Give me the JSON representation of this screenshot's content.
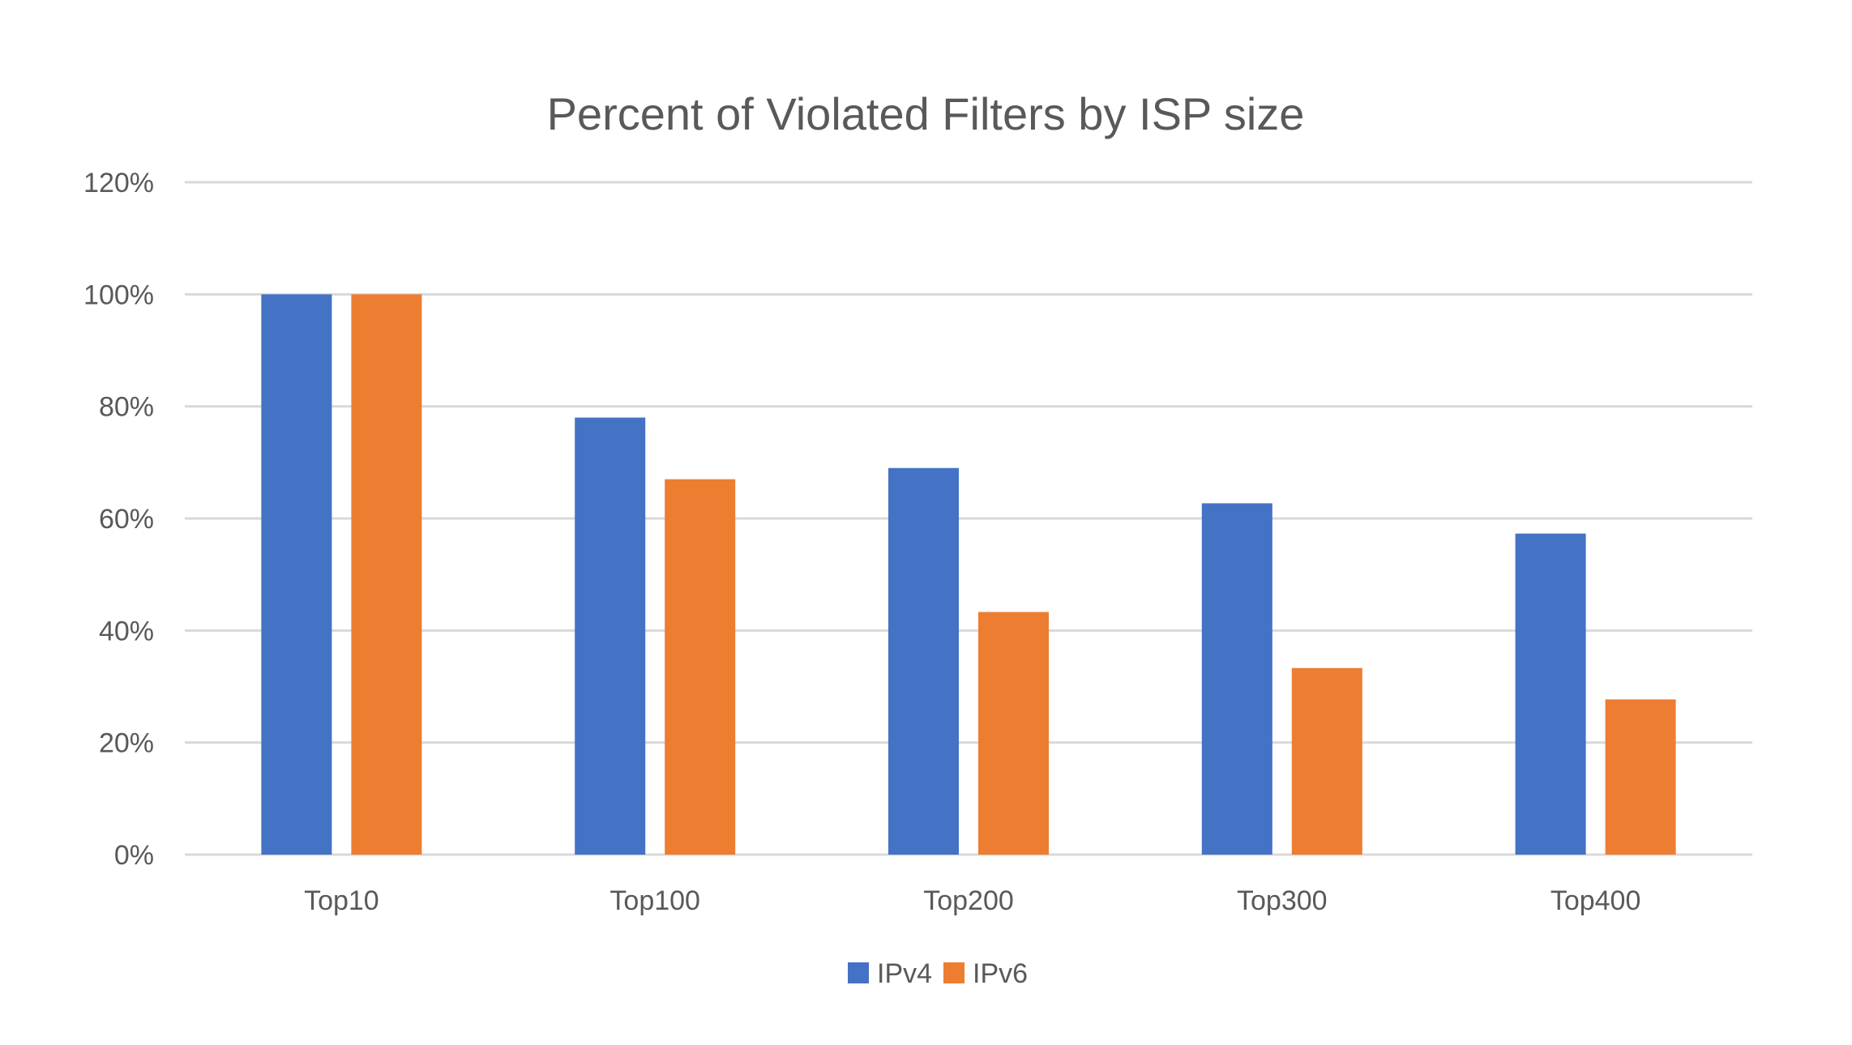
{
  "chart_data": {
    "type": "bar",
    "title": "Percent of Violated Filters by ISP size",
    "categories": [
      "Top10",
      "Top100",
      "Top200",
      "Top300",
      "Top400"
    ],
    "series": [
      {
        "name": "IPv4",
        "color": "#4472C4",
        "values": [
          100,
          78,
          69,
          62.7,
          57.3
        ]
      },
      {
        "name": "IPv6",
        "color": "#ED7D31",
        "values": [
          100,
          67,
          43.3,
          33.3,
          27.7
        ]
      }
    ],
    "ylim": [
      0,
      120
    ],
    "yticks": [
      0,
      20,
      40,
      60,
      80,
      100,
      120
    ],
    "ytick_labels": [
      "0%",
      "20%",
      "40%",
      "60%",
      "80%",
      "100%",
      "120%"
    ],
    "xlabel": "",
    "ylabel": "",
    "grid": true,
    "legend": "bottom-center",
    "colors": {
      "grid": "#D9D9D9",
      "text": "#595959",
      "axis": "#D9D9D9"
    }
  }
}
